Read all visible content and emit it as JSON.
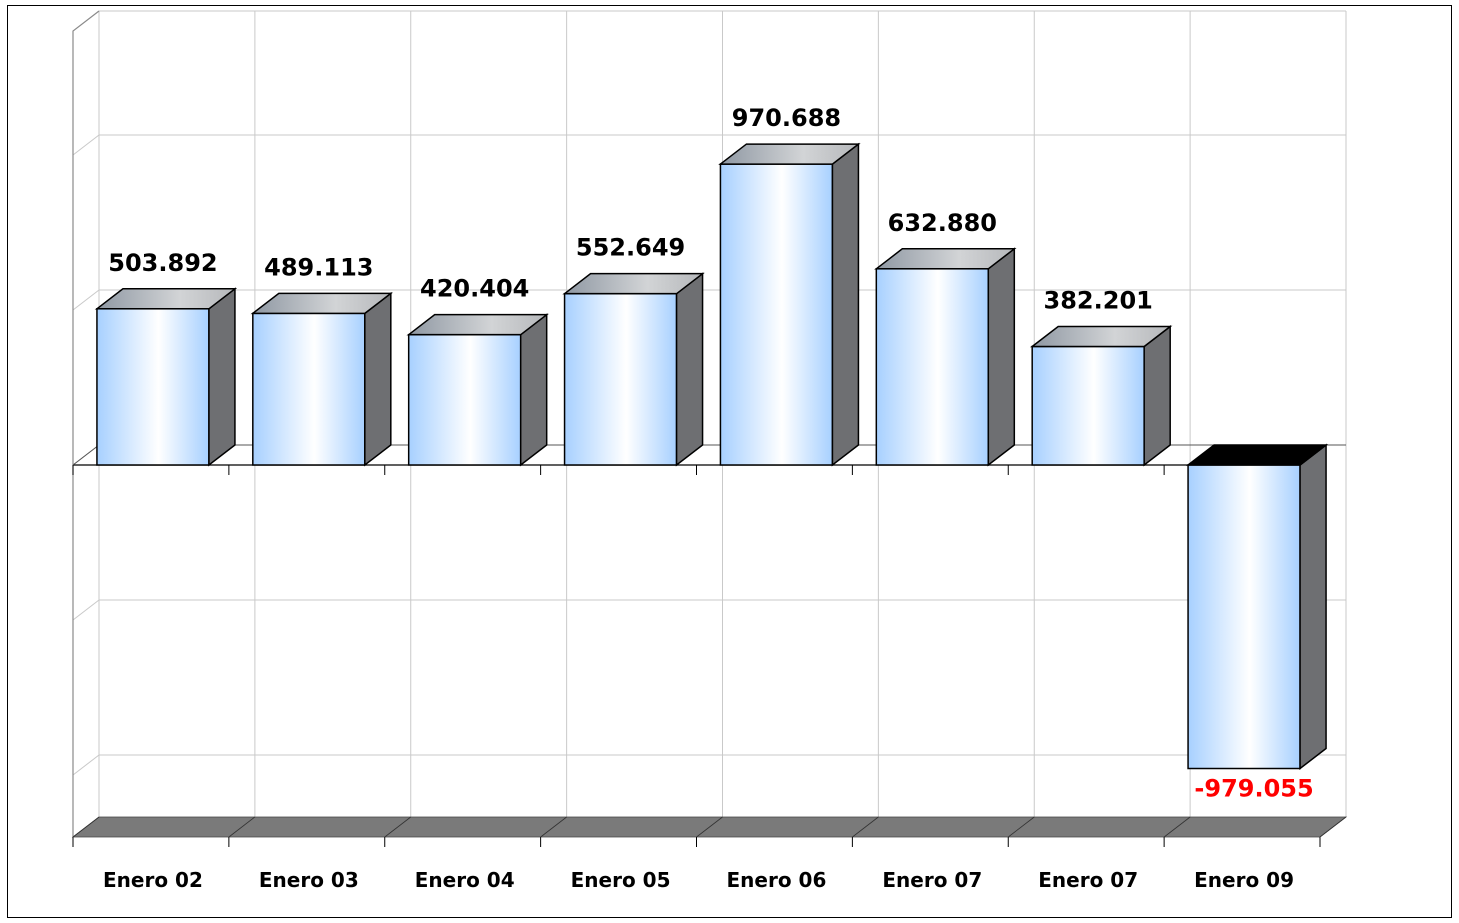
{
  "chart_data": {
    "type": "bar",
    "categories": [
      "Enero 02",
      "Enero 03",
      "Enero 04",
      "Enero 05",
      "Enero 06",
      "Enero 07",
      "Enero 07",
      "Enero 09"
    ],
    "values": [
      503892,
      489113,
      420404,
      552649,
      970688,
      632880,
      382201,
      -979055
    ],
    "data_labels": [
      "503.892",
      "489.113",
      "420.404",
      "552.649",
      "970.688",
      "632.880",
      "382.201",
      "-979.055"
    ],
    "title": "",
    "xlabel": "",
    "ylabel": "",
    "ylim": [
      -1200000,
      1400000
    ],
    "grid": true,
    "legend": "none",
    "style": "3d-column",
    "colors": {
      "bar_front_edge": "#a7d0ff",
      "bar_front_center": "#ffffff",
      "bar_side": "#6e6f72",
      "bar_top": "#b7b9bc",
      "negative_top": "#000000",
      "floor": "#7a7a7a",
      "gridline": "#c9c9c9",
      "label": "#000000",
      "negative_label": "#ff0000"
    }
  }
}
